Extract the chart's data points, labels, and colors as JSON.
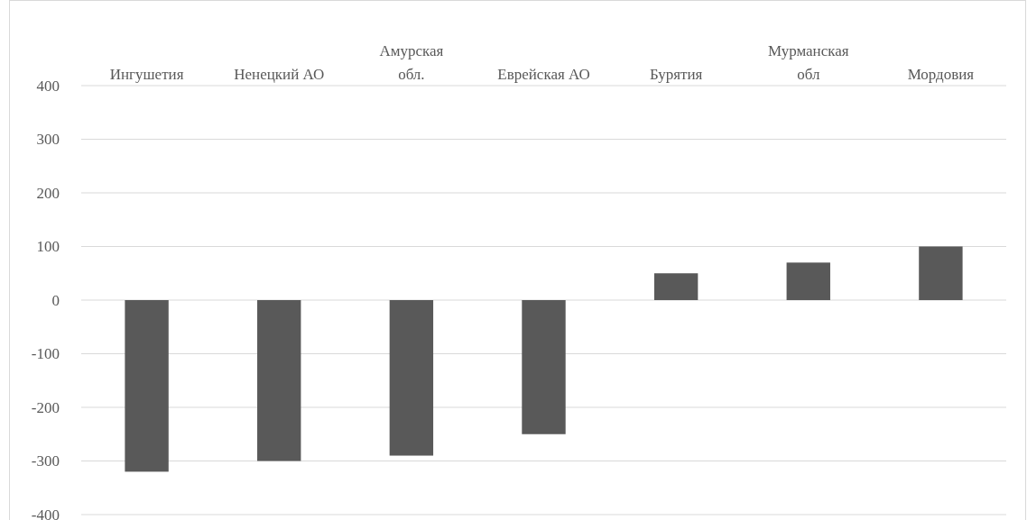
{
  "chart_data": {
    "type": "bar",
    "categories": [
      "Ингушетия",
      "Ненецкий АО",
      "Амурская обл.",
      "Еврейская АО",
      "Бурятия",
      "Мурманская обл",
      "Мордовия"
    ],
    "values": [
      -320,
      -300,
      -290,
      -250,
      50,
      70,
      100
    ],
    "color": "#595959",
    "ylim": [
      -400,
      400
    ],
    "yticks": [
      -400,
      -300,
      -200,
      -100,
      0,
      100,
      200,
      300,
      400
    ],
    "grid": "y"
  }
}
